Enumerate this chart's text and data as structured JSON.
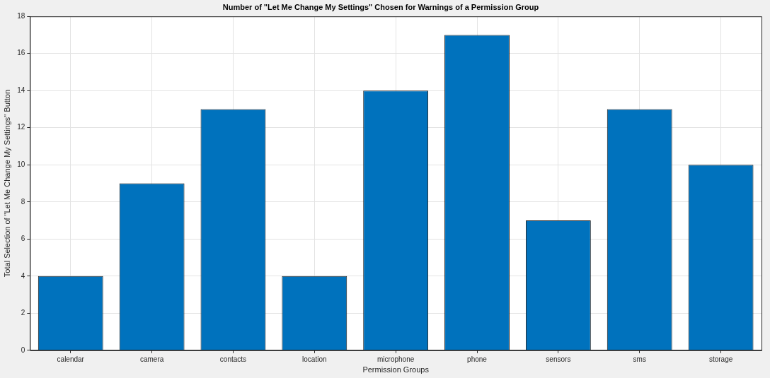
{
  "chart_data": {
    "type": "bar",
    "title": "Number of \"Let Me Change My Settings\" Chosen for Warnings of a Permission Group",
    "xlabel": "Permission Groups",
    "ylabel": "Total Selection of \"Let Me Change My Settings\" Button",
    "categories": [
      "calendar",
      "camera",
      "contacts",
      "location",
      "microphone",
      "phone",
      "sensors",
      "sms",
      "storage"
    ],
    "values": [
      4,
      9,
      13,
      4,
      14,
      17,
      7,
      13,
      10
    ],
    "color": "#0072bd",
    "ylim": [
      0,
      18
    ],
    "yticks": [
      0,
      2,
      4,
      6,
      8,
      10,
      12,
      14,
      16,
      18
    ],
    "grid": true
  }
}
